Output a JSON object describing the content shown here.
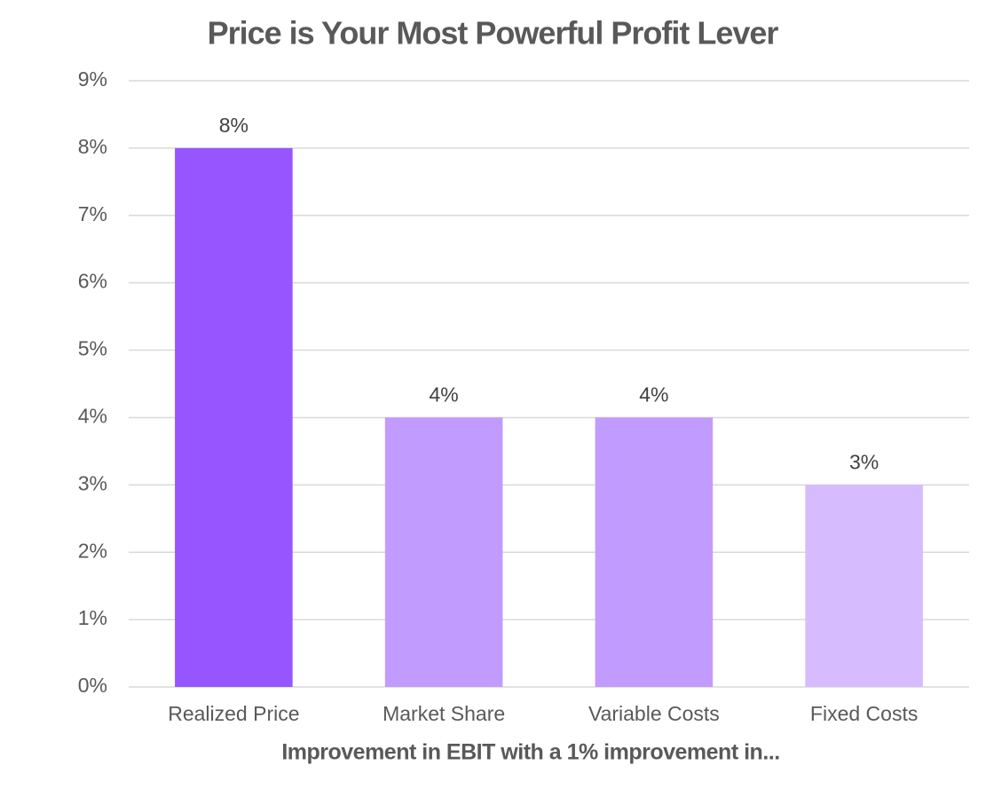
{
  "chart_data": {
    "type": "bar",
    "title": "Price is Your Most Powerful Profit Lever",
    "x_label": "Improvement in EBIT with a 1% improvement in...",
    "categories": [
      "Realized Price",
      "Market Share",
      "Variable Costs",
      "Fixed Costs"
    ],
    "values": [
      8,
      4,
      4,
      3
    ],
    "value_labels": [
      "8%",
      "4%",
      "4%",
      "3%"
    ],
    "colors": [
      "#9655ff",
      "#c29bff",
      "#c29bff",
      "#d6bcff"
    ],
    "ylim": [
      0,
      9
    ],
    "yticks": [
      {
        "value": 0,
        "label": "0%"
      },
      {
        "value": 1,
        "label": "1%"
      },
      {
        "value": 2,
        "label": "2%"
      },
      {
        "value": 3,
        "label": "3%"
      },
      {
        "value": 4,
        "label": "4%"
      },
      {
        "value": 5,
        "label": "5%"
      },
      {
        "value": 6,
        "label": "6%"
      },
      {
        "value": 7,
        "label": "7%"
      },
      {
        "value": 8,
        "label": "8%"
      },
      {
        "value": 9,
        "label": "9%"
      }
    ],
    "grid": true
  }
}
